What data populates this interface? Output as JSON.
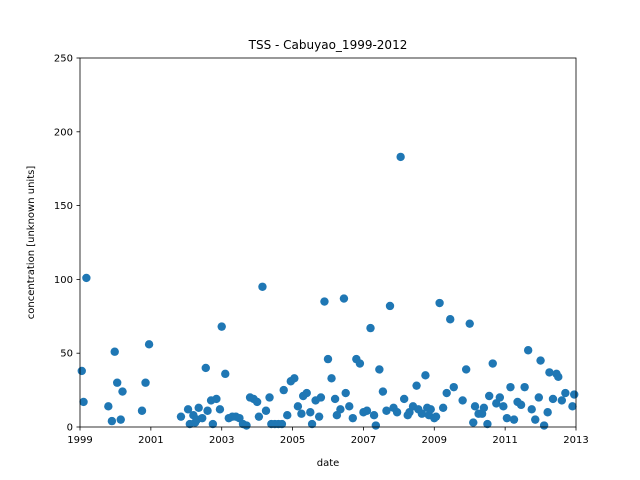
{
  "chart_data": {
    "type": "scatter",
    "title": "TSS - Cabuyao_1999-2012",
    "xlabel": "date",
    "ylabel": "concentration [unknown units]",
    "xlim": [
      1999.0,
      2013.0
    ],
    "ylim": [
      0,
      250
    ],
    "x_ticks": [
      {
        "value": 1999,
        "label": "1999"
      },
      {
        "value": 2001,
        "label": "2001"
      },
      {
        "value": 2003,
        "label": "2003"
      },
      {
        "value": 2005,
        "label": "2005"
      },
      {
        "value": 2007,
        "label": "2007"
      },
      {
        "value": 2009,
        "label": "2009"
      },
      {
        "value": 2011,
        "label": "2011"
      },
      {
        "value": 2013,
        "label": "2013"
      }
    ],
    "y_ticks": [
      0,
      50,
      100,
      150,
      200,
      250
    ],
    "grid": false,
    "marker_color": "#1f77b4",
    "series": [
      {
        "points": [
          [
            1999.05,
            38
          ],
          [
            1999.1,
            17
          ],
          [
            1999.18,
            101
          ],
          [
            1999.8,
            14
          ],
          [
            1999.9,
            4
          ],
          [
            1999.98,
            51
          ],
          [
            2000.05,
            30
          ],
          [
            2000.15,
            5
          ],
          [
            2000.2,
            24
          ],
          [
            2000.75,
            11
          ],
          [
            2000.85,
            30
          ],
          [
            2000.95,
            56
          ],
          [
            2001.85,
            7
          ],
          [
            2002.05,
            12
          ],
          [
            2002.1,
            2
          ],
          [
            2002.2,
            8
          ],
          [
            2002.25,
            3
          ],
          [
            2002.3,
            5
          ],
          [
            2002.35,
            13
          ],
          [
            2002.45,
            6
          ],
          [
            2002.55,
            40
          ],
          [
            2002.6,
            11
          ],
          [
            2002.7,
            18
          ],
          [
            2002.75,
            2
          ],
          [
            2002.85,
            19
          ],
          [
            2002.95,
            12
          ],
          [
            2003.0,
            68
          ],
          [
            2003.1,
            36
          ],
          [
            2003.2,
            6
          ],
          [
            2003.3,
            7
          ],
          [
            2003.4,
            7
          ],
          [
            2003.5,
            6
          ],
          [
            2003.6,
            2
          ],
          [
            2003.7,
            1
          ],
          [
            2003.8,
            20
          ],
          [
            2003.9,
            19
          ],
          [
            2004.0,
            17
          ],
          [
            2004.05,
            7
          ],
          [
            2004.15,
            95
          ],
          [
            2004.25,
            11
          ],
          [
            2004.35,
            20
          ],
          [
            2004.4,
            2
          ],
          [
            2004.5,
            2
          ],
          [
            2004.6,
            2
          ],
          [
            2004.7,
            2
          ],
          [
            2004.75,
            25
          ],
          [
            2004.85,
            8
          ],
          [
            2004.95,
            31
          ],
          [
            2005.05,
            33
          ],
          [
            2005.15,
            14
          ],
          [
            2005.25,
            9
          ],
          [
            2005.3,
            21
          ],
          [
            2005.4,
            23
          ],
          [
            2005.5,
            10
          ],
          [
            2005.55,
            2
          ],
          [
            2005.65,
            18
          ],
          [
            2005.75,
            7
          ],
          [
            2005.8,
            20
          ],
          [
            2005.9,
            85
          ],
          [
            2006.0,
            46
          ],
          [
            2006.1,
            33
          ],
          [
            2006.2,
            19
          ],
          [
            2006.25,
            8
          ],
          [
            2006.35,
            12
          ],
          [
            2006.45,
            87
          ],
          [
            2006.5,
            23
          ],
          [
            2006.6,
            14
          ],
          [
            2006.7,
            6
          ],
          [
            2006.8,
            46
          ],
          [
            2006.9,
            43
          ],
          [
            2007.0,
            10
          ],
          [
            2007.1,
            11
          ],
          [
            2007.2,
            67
          ],
          [
            2007.3,
            8
          ],
          [
            2007.35,
            1
          ],
          [
            2007.45,
            39
          ],
          [
            2007.55,
            24
          ],
          [
            2007.65,
            11
          ],
          [
            2007.75,
            82
          ],
          [
            2007.85,
            13
          ],
          [
            2007.95,
            10
          ],
          [
            2008.05,
            183
          ],
          [
            2008.15,
            19
          ],
          [
            2008.25,
            8
          ],
          [
            2008.3,
            10
          ],
          [
            2008.4,
            14
          ],
          [
            2008.5,
            28
          ],
          [
            2008.55,
            12
          ],
          [
            2008.65,
            9
          ],
          [
            2008.75,
            35
          ],
          [
            2008.8,
            13
          ],
          [
            2008.85,
            8
          ],
          [
            2008.9,
            12
          ],
          [
            2009.0,
            6
          ],
          [
            2009.05,
            7
          ],
          [
            2009.15,
            84
          ],
          [
            2009.25,
            13
          ],
          [
            2009.35,
            23
          ],
          [
            2009.45,
            73
          ],
          [
            2009.55,
            27
          ],
          [
            2009.8,
            18
          ],
          [
            2009.9,
            39
          ],
          [
            2010.0,
            70
          ],
          [
            2010.1,
            3
          ],
          [
            2010.15,
            14
          ],
          [
            2010.25,
            9
          ],
          [
            2010.35,
            9
          ],
          [
            2010.4,
            13
          ],
          [
            2010.5,
            2
          ],
          [
            2010.55,
            21
          ],
          [
            2010.65,
            43
          ],
          [
            2010.75,
            16
          ],
          [
            2010.85,
            20
          ],
          [
            2010.95,
            14
          ],
          [
            2011.05,
            6
          ],
          [
            2011.15,
            27
          ],
          [
            2011.25,
            5
          ],
          [
            2011.35,
            17
          ],
          [
            2011.45,
            15
          ],
          [
            2011.55,
            27
          ],
          [
            2011.65,
            52
          ],
          [
            2011.75,
            12
          ],
          [
            2011.85,
            5
          ],
          [
            2011.95,
            20
          ],
          [
            2012.0,
            45
          ],
          [
            2012.1,
            1
          ],
          [
            2012.2,
            10
          ],
          [
            2012.25,
            37
          ],
          [
            2012.35,
            19
          ],
          [
            2012.45,
            36
          ],
          [
            2012.5,
            34
          ],
          [
            2012.6,
            18
          ],
          [
            2012.7,
            23
          ],
          [
            2012.9,
            14
          ],
          [
            2012.95,
            22
          ]
        ]
      }
    ]
  }
}
